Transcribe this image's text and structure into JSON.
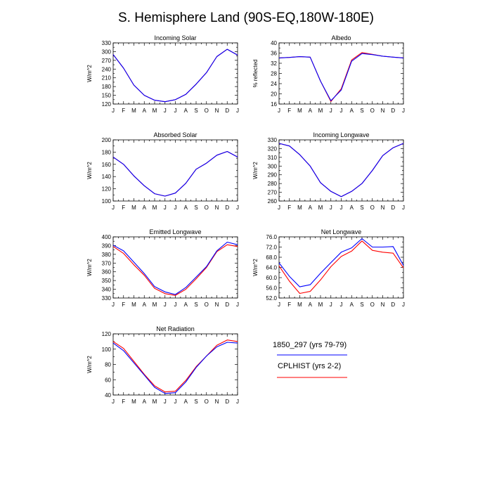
{
  "title": "S. Hemisphere Land (90S-EQ,180W-180E)",
  "colors": {
    "series_1850": "#0000ff",
    "series_cplhist": "#ff0000",
    "axis": "#000000"
  },
  "legend": [
    {
      "label": "1850_297 (yrs 79-79)",
      "color": "#0000ff"
    },
    {
      "label": "CPLHIST (yrs 2-2)",
      "color": "#ff0000"
    }
  ],
  "chart_data": [
    {
      "type": "line",
      "title": "Incoming Solar",
      "xlabel": "",
      "ylabel": "W/m^2",
      "categories": [
        "J",
        "F",
        "M",
        "A",
        "M",
        "J",
        "J",
        "A",
        "S",
        "O",
        "N",
        "D",
        "J"
      ],
      "yticks": [
        "120",
        "150",
        "180",
        "210",
        "240",
        "270",
        "300",
        "330"
      ],
      "ylim": [
        120,
        330
      ],
      "series": [
        {
          "name": "1850_297 (yrs 79-79)",
          "values": [
            290,
            243,
            185,
            150,
            133,
            128,
            135,
            153,
            188,
            228,
            283,
            308,
            288
          ]
        },
        {
          "name": "CPLHIST (yrs 2-2)",
          "values": [
            290,
            243,
            185,
            150,
            133,
            128,
            135,
            153,
            188,
            228,
            283,
            308,
            288
          ]
        }
      ]
    },
    {
      "type": "line",
      "title": "Albedo",
      "xlabel": "",
      "ylabel": "% reflected",
      "categories": [
        "J",
        "F",
        "M",
        "A",
        "M",
        "J",
        "J",
        "A",
        "S",
        "O",
        "N",
        "D",
        "J"
      ],
      "yticks": [
        "16",
        "20",
        "24",
        "28",
        "32",
        "36",
        "40"
      ],
      "ylim": [
        16,
        40
      ],
      "series": [
        {
          "name": "1850_297 (yrs 79-79)",
          "values": [
            34.1,
            34.3,
            34.6,
            34.4,
            25.0,
            17.3,
            21.5,
            32.8,
            35.8,
            35.4,
            34.8,
            34.4,
            34.1
          ]
        },
        {
          "name": "CPLHIST (yrs 2-2)",
          "values": [
            34.1,
            34.3,
            34.6,
            34.4,
            25.0,
            17.0,
            22.0,
            33.3,
            36.2,
            35.5,
            34.8,
            34.4,
            34.1
          ]
        }
      ]
    },
    {
      "type": "line",
      "title": "Absorbed Solar",
      "xlabel": "",
      "ylabel": "W/m^2",
      "categories": [
        "J",
        "F",
        "M",
        "A",
        "M",
        "J",
        "J",
        "A",
        "S",
        "O",
        "N",
        "D",
        "J"
      ],
      "yticks": [
        "100",
        "120",
        "140",
        "160",
        "180",
        "200"
      ],
      "ylim": [
        100,
        200
      ],
      "series": [
        {
          "name": "1850_297 (yrs 79-79)",
          "values": [
            172,
            160,
            141,
            125,
            112,
            108,
            113,
            129,
            152,
            162,
            175,
            181,
            172
          ]
        },
        {
          "name": "CPLHIST (yrs 2-2)",
          "values": [
            172,
            160,
            141,
            125,
            112,
            108,
            113,
            129,
            152,
            162,
            175,
            181,
            172
          ]
        }
      ]
    },
    {
      "type": "line",
      "title": "Incoming Longwave",
      "xlabel": "",
      "ylabel": "W/m^2",
      "categories": [
        "J",
        "F",
        "M",
        "A",
        "M",
        "J",
        "J",
        "A",
        "S",
        "O",
        "N",
        "D",
        "J"
      ],
      "yticks": [
        "260",
        "270",
        "280",
        "290",
        "300",
        "310",
        "320",
        "330"
      ],
      "ylim": [
        260,
        330
      ],
      "series": [
        {
          "name": "1850_297 (yrs 79-79)",
          "values": [
            326,
            323,
            313,
            300,
            281,
            271,
            265,
            271,
            280,
            295,
            312,
            321,
            326
          ]
        },
        {
          "name": "CPLHIST (yrs 2-2)",
          "values": [
            326,
            323,
            313,
            300,
            281,
            271,
            265,
            271,
            280,
            295,
            312,
            321,
            326
          ]
        }
      ]
    },
    {
      "type": "line",
      "title": "Emitted Longwave",
      "xlabel": "",
      "ylabel": "W/m^2",
      "categories": [
        "J",
        "F",
        "M",
        "A",
        "M",
        "J",
        "J",
        "A",
        "S",
        "O",
        "N",
        "D",
        "J"
      ],
      "yticks": [
        "330",
        "340",
        "350",
        "360",
        "370",
        "380",
        "390",
        "400"
      ],
      "ylim": [
        330,
        400
      ],
      "series": [
        {
          "name": "1850_297 (yrs 79-79)",
          "values": [
            390.5,
            384,
            371,
            358,
            343,
            337,
            334,
            342,
            354,
            366,
            384,
            394,
            391
          ]
        },
        {
          "name": "CPLHIST (yrs 2-2)",
          "values": [
            389,
            381,
            368,
            356,
            341,
            335,
            333,
            340,
            352,
            365,
            383,
            391,
            389
          ]
        }
      ]
    },
    {
      "type": "line",
      "title": "Net Longwave",
      "xlabel": "",
      "ylabel": "W/m^2",
      "categories": [
        "J",
        "F",
        "M",
        "A",
        "M",
        "J",
        "J",
        "A",
        "S",
        "O",
        "N",
        "D",
        "J"
      ],
      "yticks": [
        "52.0",
        "56.0",
        "60.0",
        "64.0",
        "68.0",
        "72.0",
        "76.0"
      ],
      "ylim": [
        52,
        76
      ],
      "series": [
        {
          "name": "1850_297 (yrs 79-79)",
          "values": [
            65.8,
            60.5,
            56.4,
            57.2,
            61.7,
            65.9,
            70.0,
            71.7,
            75.3,
            72.0,
            72.0,
            72.2,
            64.8
          ]
        },
        {
          "name": "CPLHIST (yrs 2-2)",
          "values": [
            64.6,
            58.6,
            53.8,
            54.6,
            59.1,
            64.3,
            68.3,
            70.4,
            74.4,
            70.7,
            70.0,
            69.6,
            63.8
          ]
        }
      ]
    },
    {
      "type": "line",
      "title": "Net Radiation",
      "xlabel": "",
      "ylabel": "W/m^2",
      "categories": [
        "J",
        "F",
        "M",
        "A",
        "M",
        "J",
        "J",
        "A",
        "S",
        "O",
        "N",
        "D",
        "J"
      ],
      "yticks": [
        "40",
        "60",
        "80",
        "100",
        "120"
      ],
      "ylim": [
        40,
        120
      ],
      "series": [
        {
          "name": "1850_297 (yrs 79-79)",
          "values": [
            108,
            98,
            82,
            66,
            50,
            42,
            43,
            57,
            76,
            91,
            103,
            109,
            108
          ]
        },
        {
          "name": "CPLHIST (yrs 2-2)",
          "values": [
            110,
            101,
            84,
            67,
            52,
            44,
            45,
            59,
            77,
            91,
            105,
            112,
            110
          ]
        }
      ]
    }
  ]
}
